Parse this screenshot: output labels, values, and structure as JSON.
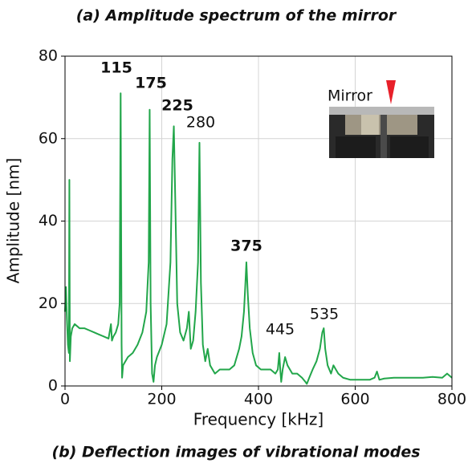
{
  "chart_data": {
    "type": "line",
    "title": "(a) Amplitude spectrum of the mirror",
    "caption": "(b) Deflection images of vibrational modes",
    "x_label": "Frequency [kHz]",
    "y_label": "Amplitude [nm]",
    "color": "#22a64a",
    "grid": true,
    "xlim": [
      0,
      800
    ],
    "xticks": [
      0,
      200,
      400,
      600,
      800
    ],
    "ylim": [
      0,
      80
    ],
    "yticks": [
      0,
      20,
      40,
      60,
      80
    ],
    "x": [
      0,
      2,
      4,
      6,
      8,
      9,
      10,
      12,
      15,
      20,
      30,
      40,
      50,
      60,
      70,
      80,
      90,
      95,
      97,
      100,
      105,
      110,
      113,
      115,
      117,
      118,
      120,
      130,
      140,
      150,
      160,
      168,
      173,
      175,
      177,
      180,
      183,
      186,
      190,
      200,
      210,
      218,
      222,
      225,
      228,
      232,
      238,
      245,
      252,
      256,
      260,
      265,
      270,
      275,
      278,
      281,
      285,
      290,
      295,
      300,
      310,
      320,
      330,
      340,
      350,
      360,
      365,
      370,
      373,
      375,
      378,
      382,
      388,
      395,
      405,
      415,
      425,
      435,
      440,
      443,
      445,
      447,
      450,
      455,
      460,
      465,
      470,
      480,
      490,
      497,
      500,
      505,
      512,
      520,
      527,
      532,
      535,
      538,
      543,
      550,
      555,
      560,
      565,
      575,
      590,
      610,
      630,
      640,
      645,
      650,
      660,
      680,
      700,
      720,
      740,
      760,
      780,
      790,
      800
    ],
    "values": [
      18,
      24,
      16,
      10,
      8,
      50,
      6,
      12,
      14,
      15,
      14,
      14,
      13.5,
      13,
      12.5,
      12,
      11.5,
      15,
      11,
      12,
      13,
      15,
      20,
      71,
      10,
      2,
      5,
      7,
      8,
      10,
      13,
      18,
      30,
      67,
      20,
      3,
      1,
      5,
      7,
      10,
      15,
      30,
      55,
      63,
      45,
      20,
      13,
      11,
      14,
      18,
      9,
      11,
      18,
      30,
      59,
      25,
      10,
      6,
      9,
      5,
      3,
      4,
      4,
      4,
      5,
      9,
      12,
      18,
      25,
      30,
      22,
      14,
      8,
      5,
      4,
      4,
      4,
      3,
      4,
      8,
      4,
      1,
      4,
      7,
      5,
      4,
      3,
      3,
      2,
      1,
      0.5,
      2,
      4,
      6,
      9,
      13,
      14,
      9,
      5,
      3,
      5,
      4,
      3,
      2,
      1.5,
      1.5,
      1.5,
      2,
      3.5,
      1.5,
      1.8,
      2,
      2,
      2,
      2,
      2.2,
      2,
      3,
      2
    ],
    "annotations": [
      {
        "text": "115",
        "bold": true
      },
      {
        "text": "175",
        "bold": true
      },
      {
        "text": "225",
        "bold": true
      },
      {
        "text": "280",
        "bold": false
      },
      {
        "text": "375",
        "bold": true
      },
      {
        "text": "445",
        "bold": false
      },
      {
        "text": "535",
        "bold": false
      }
    ],
    "inset_label": "Mirror"
  }
}
